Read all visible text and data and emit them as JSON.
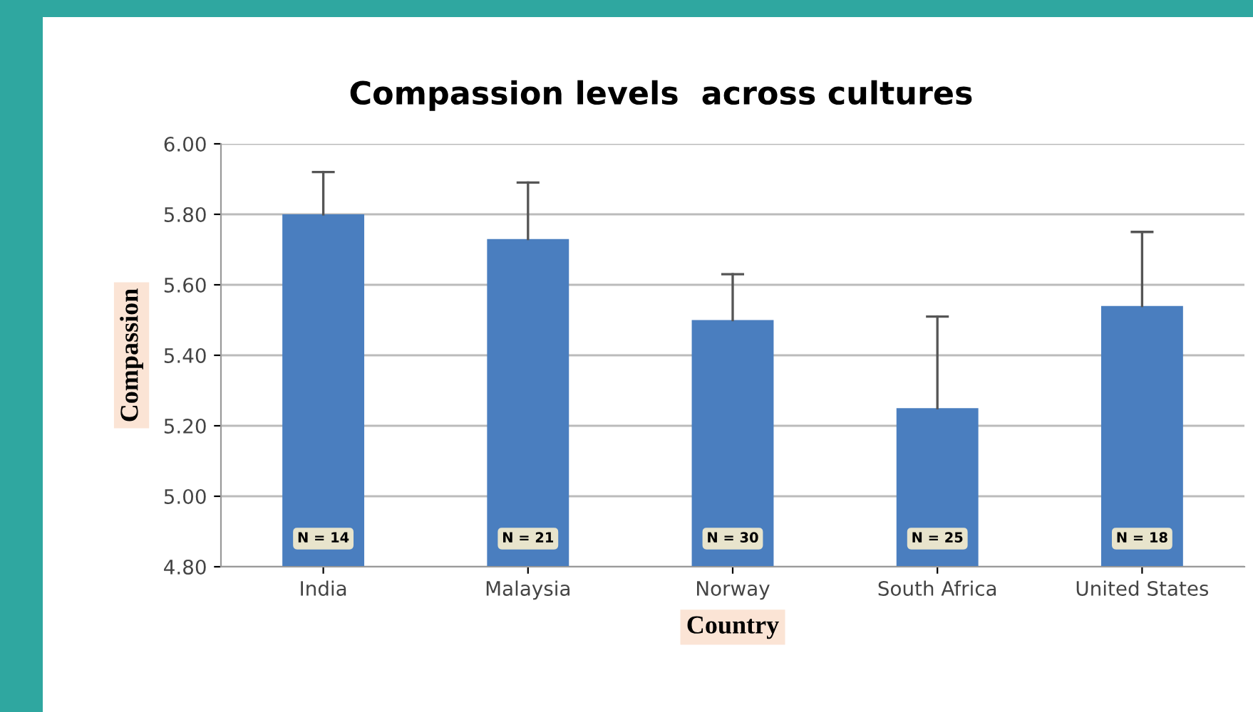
{
  "chart_data": {
    "type": "bar",
    "title": "Compassion levels  across cultures",
    "xlabel": "Country",
    "ylabel": "Compassion",
    "categories": [
      "India",
      "Malaysia",
      "Norway",
      "South Africa",
      "United States"
    ],
    "values": [
      5.8,
      5.73,
      5.5,
      5.25,
      5.54
    ],
    "errors": [
      [
        5.8,
        5.92
      ],
      [
        5.73,
        5.89
      ],
      [
        5.5,
        5.63
      ],
      [
        5.25,
        5.51
      ],
      [
        5.54,
        5.75
      ]
    ],
    "color": "#4a7ebf",
    "ylim": [
      4.8,
      6.0
    ],
    "yticks": [
      {
        "value": 4.8,
        "label": "4.80"
      },
      {
        "value": 5.0,
        "label": "5.00"
      },
      {
        "value": 5.2,
        "label": "5.20"
      },
      {
        "value": 5.4,
        "label": "5.40"
      },
      {
        "value": 5.6,
        "label": "5.60"
      },
      {
        "value": 5.8,
        "label": "5.80"
      },
      {
        "value": 6.0,
        "label": "6.00"
      }
    ],
    "grid": "y",
    "annotations": [
      {
        "text": "N = 14",
        "x": "India",
        "y": 4.88
      },
      {
        "text": "N = 21",
        "x": "Malaysia",
        "y": 4.88
      },
      {
        "text": "N = 30",
        "x": "Norway",
        "y": 4.88
      },
      {
        "text": "N = 25",
        "x": "South Africa",
        "y": 4.88
      },
      {
        "text": "N = 18",
        "x": "United States",
        "y": 4.88
      }
    ]
  }
}
